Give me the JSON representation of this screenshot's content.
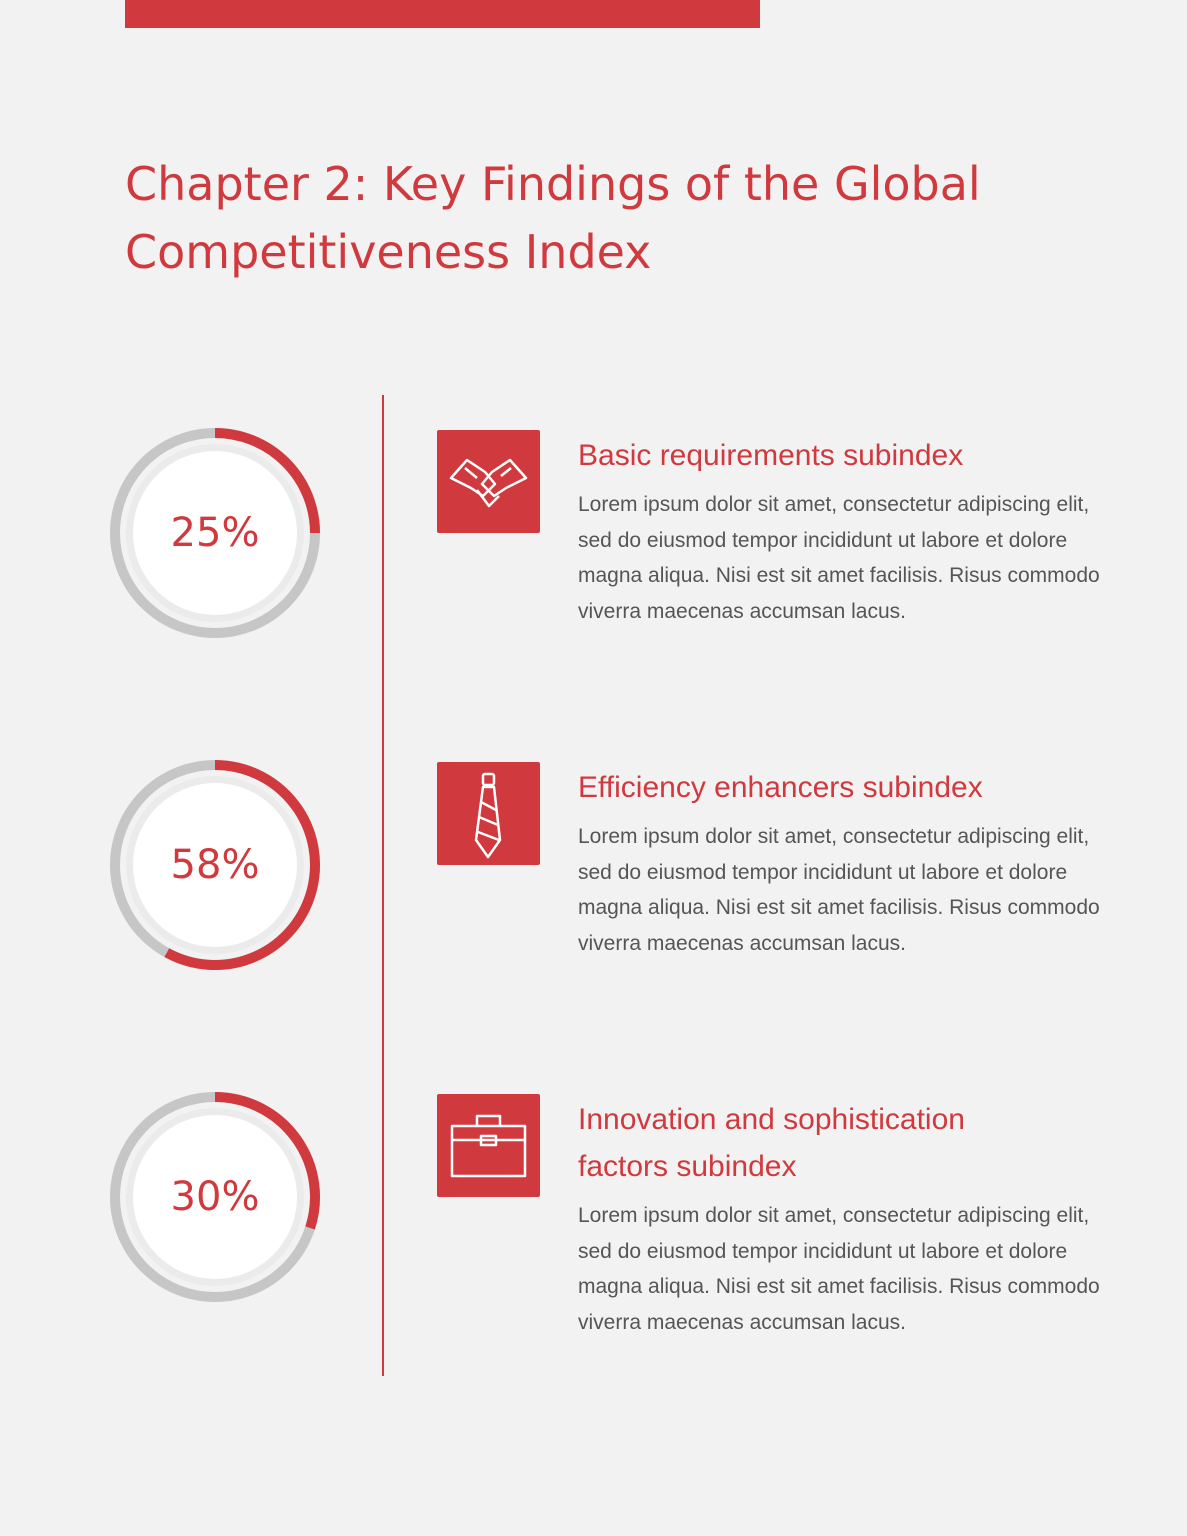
{
  "title": "Chapter 2: Key Findings of the Global Competitiveness Index",
  "value_range": [
    0,
    100
  ],
  "items": [
    {
      "value": 25,
      "value_label": "25%",
      "heading": "Basic requirements subindex",
      "body": "Lorem ipsum dolor sit amet, consectetur adipiscing elit, sed do eiusmod tempor incididunt ut labore et dolore magna aliqua. Nisi est sit amet facilisis. Risus commodo viverra maecenas accumsan lacus."
    },
    {
      "value": 58,
      "value_label": "58%",
      "heading": "Efficiency enhancers subindex",
      "body": "Lorem ipsum dolor sit amet, consectetur adipiscing elit, sed do eiusmod tempor incididunt ut labore et dolore magna aliqua. Nisi est sit amet facilisis. Risus commodo viverra maecenas accumsan lacus."
    },
    {
      "value": 30,
      "value_label": "30%",
      "heading": "Innovation and sophistication factors subindex",
      "body": "Lorem ipsum dolor sit amet, consectetur adipiscing elit, sed do eiusmod tempor incididunt ut labore et dolore magna aliqua. Nisi est sit amet facilisis. Risus commodo viverra maecenas accumsan lacus."
    }
  ]
}
